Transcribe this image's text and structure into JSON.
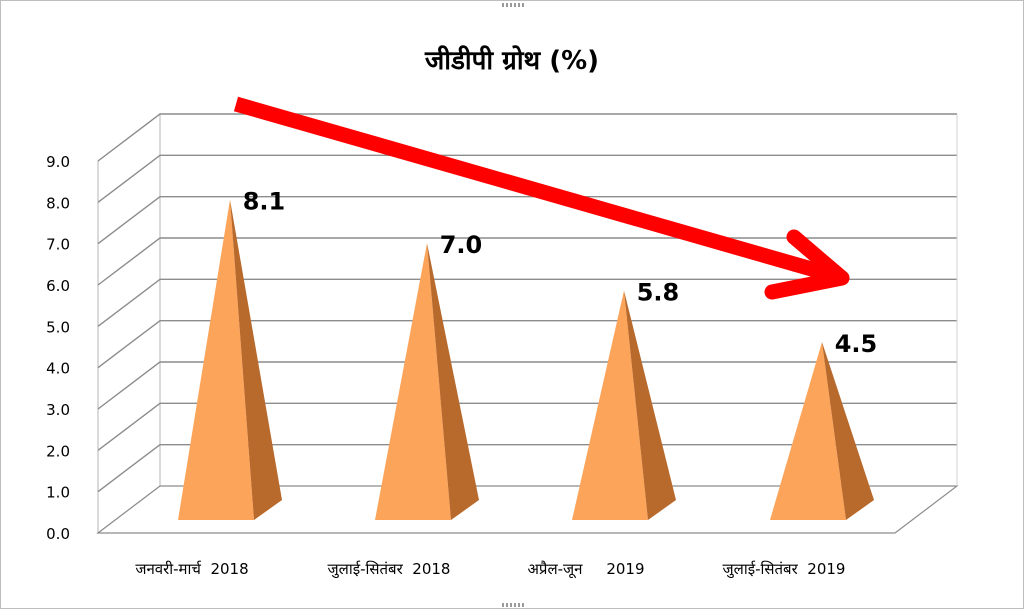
{
  "chart_data": {
    "type": "bar",
    "bar_shape": "pyramid-3d",
    "title": "जीडीपी ग्रोथ (%)",
    "categories": [
      "जनवरी-मार्च  2018",
      "जुलाई-सितंबर  2018",
      "अप्रैल-जून     2019",
      "जुलाई-सितंबर  2019"
    ],
    "series": [
      {
        "values": [
          8.1,
          7.0,
          5.8,
          4.5
        ]
      }
    ],
    "data_labels": [
      "8.1",
      "7.0",
      "5.8",
      "4.5"
    ],
    "y_ticks": [
      "0.0",
      "1.0",
      "2.0",
      "3.0",
      "4.0",
      "5.0",
      "6.0",
      "7.0",
      "8.0",
      "9.0"
    ],
    "ylim": [
      0,
      9
    ],
    "grid": true,
    "legend": "none",
    "annotation": "red downward trend arrow",
    "colors": {
      "bar_light": "#fca45a",
      "bar_dark": "#b8692c",
      "grid": "#8c8c8c",
      "arrow": "#ff0000",
      "text": "#000000"
    }
  }
}
